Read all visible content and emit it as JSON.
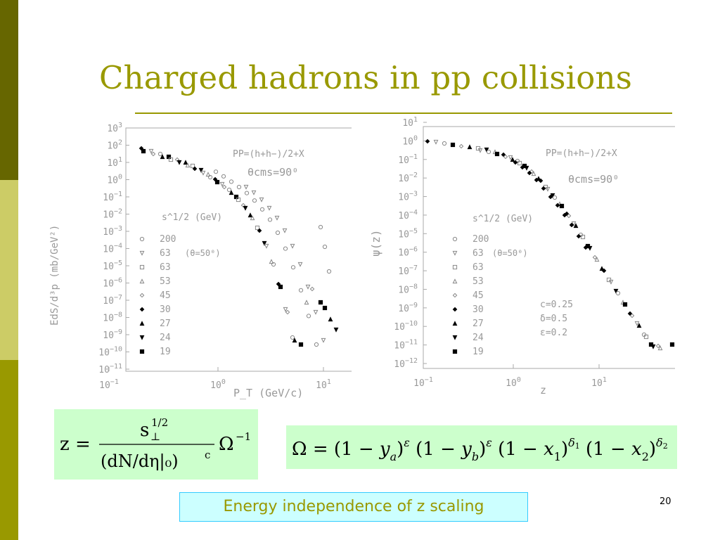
{
  "slide": {
    "title": "Charged hadrons in pp collisions",
    "caption": "Energy independence of z scaling",
    "page_number": "20"
  },
  "colors": {
    "accent": "#999900",
    "formula_bg": "#ccffcc",
    "caption_bg": "#ccffff",
    "caption_border": "#33ccff"
  },
  "left_plot": {
    "ylabel": "EdS/d³p (mb/GeV²)",
    "xlabel": "P_T (GeV/c)",
    "process": "PP=(h+h−)/2+X",
    "angle": "θcms=90⁰",
    "legend_title": "s^1/2 (GeV)",
    "legend_note": "(θ=50⁰)",
    "y_ticks": [
      "10^3",
      "10^2",
      "10^1",
      "10^0",
      "10^-1",
      "10^-2",
      "10^-3",
      "10^-4",
      "10^-5",
      "10^-6",
      "10^-7",
      "10^-8",
      "10^-9",
      "10^-10",
      "10^-11"
    ],
    "x_ticks": [
      "10^-1",
      "10^0",
      "10^1"
    ]
  },
  "right_plot": {
    "ylabel": "ψ(z)",
    "xlabel": "z",
    "process": "PP=(h+h−)/2+X",
    "angle": "θcms=90⁰",
    "legend_title": "s^1/2 (GeV)",
    "legend_note": "(θ=50⁰)",
    "params": [
      "c=0.25",
      "δ=0.5",
      "ε=0.2"
    ],
    "y_ticks": [
      "10^1",
      "10^0",
      "10^-1",
      "10^-2",
      "10^-3",
      "10^-4",
      "10^-5",
      "10^-6",
      "10^-7",
      "10^-8",
      "10^-9",
      "10^-10",
      "10^-11",
      "10^-12"
    ],
    "x_ticks": [
      "10^-1",
      "10^0",
      "10^1"
    ]
  },
  "legend_entries": [
    {
      "label": "200",
      "marker": "circle-open"
    },
    {
      "label": "63",
      "marker": "triangle-down-open"
    },
    {
      "label": "63",
      "marker": "square-open"
    },
    {
      "label": "53",
      "marker": "triangle-up-open"
    },
    {
      "label": "45",
      "marker": "diamond-open"
    },
    {
      "label": "30",
      "marker": "diamond-filled"
    },
    {
      "label": "27",
      "marker": "triangle-up-filled"
    },
    {
      "label": "24",
      "marker": "triangle-down-filled"
    },
    {
      "label": "19",
      "marker": "square-filled"
    }
  ],
  "formula1": {
    "lhs": "z =",
    "numerator": "s",
    "num_sup": "1/2",
    "num_sub": "⊥",
    "denominator": "(dN/dη|₀)",
    "den_sup": "c",
    "factor": "Ω",
    "factor_sup": "−1"
  },
  "formula2": {
    "text": "Ω = (1 − y_a)^ε (1 − y_b)^ε (1 − x₁)^δ1 (1 − x₂)^δ2"
  }
}
